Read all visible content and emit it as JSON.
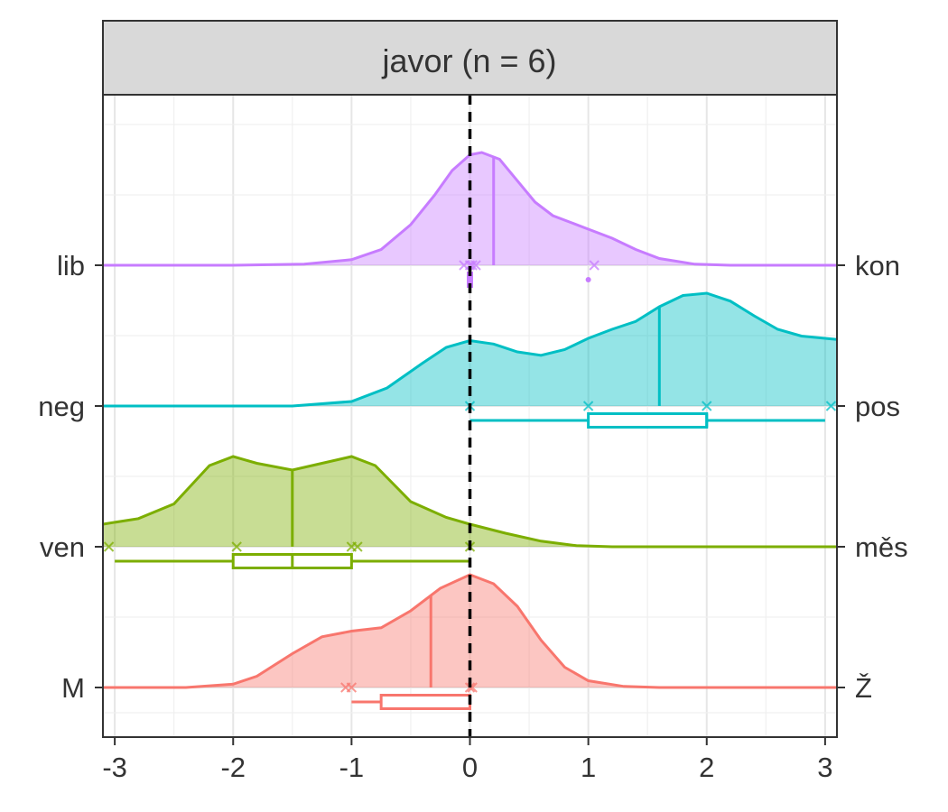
{
  "chart_data": {
    "type": "ridgeline",
    "title": "javor (n = 6)",
    "xlim": [
      -3.1,
      3.1
    ],
    "x_ticks": [
      -3,
      -2,
      -1,
      0,
      1,
      2,
      3
    ],
    "reference_line_x": 0,
    "grid": true,
    "left_labels": [
      "lib",
      "neg",
      "ven",
      "M"
    ],
    "right_labels": [
      "kon",
      "pos",
      "měs",
      "Ž"
    ],
    "rows": [
      {
        "left": "lib",
        "right": "kon",
        "color": "#C77CFF",
        "density": [
          [
            -3.1,
            0
          ],
          [
            -2.0,
            0
          ],
          [
            -1.4,
            0.01
          ],
          [
            -1.0,
            0.05
          ],
          [
            -0.75,
            0.14
          ],
          [
            -0.5,
            0.36
          ],
          [
            -0.3,
            0.62
          ],
          [
            -0.15,
            0.84
          ],
          [
            0,
            0.98
          ],
          [
            0.1,
            1.0
          ],
          [
            0.25,
            0.94
          ],
          [
            0.4,
            0.75
          ],
          [
            0.55,
            0.56
          ],
          [
            0.7,
            0.44
          ],
          [
            0.85,
            0.38
          ],
          [
            1.0,
            0.32
          ],
          [
            1.2,
            0.24
          ],
          [
            1.4,
            0.14
          ],
          [
            1.6,
            0.06
          ],
          [
            1.9,
            0.01
          ],
          [
            2.2,
            0
          ],
          [
            3.1,
            0
          ]
        ],
        "mean": 0.2,
        "points": [
          -0.05,
          0,
          0.02,
          0.05,
          1.05
        ],
        "box": {
          "min": 0,
          "q1": 0,
          "median": 0,
          "q3": 0,
          "max": 0
        },
        "outliers": [
          1.0
        ]
      },
      {
        "left": "neg",
        "right": "pos",
        "color": "#00BFC4",
        "density": [
          [
            -3.1,
            0
          ],
          [
            -1.5,
            0
          ],
          [
            -1.0,
            0.04
          ],
          [
            -0.7,
            0.16
          ],
          [
            -0.4,
            0.38
          ],
          [
            -0.2,
            0.52
          ],
          [
            0,
            0.58
          ],
          [
            0.2,
            0.55
          ],
          [
            0.4,
            0.48
          ],
          [
            0.6,
            0.45
          ],
          [
            0.8,
            0.5
          ],
          [
            1.0,
            0.6
          ],
          [
            1.2,
            0.68
          ],
          [
            1.4,
            0.75
          ],
          [
            1.6,
            0.88
          ],
          [
            1.8,
            0.98
          ],
          [
            2.0,
            1.0
          ],
          [
            2.2,
            0.93
          ],
          [
            2.4,
            0.8
          ],
          [
            2.6,
            0.68
          ],
          [
            2.8,
            0.62
          ],
          [
            3.0,
            0.6
          ],
          [
            3.1,
            0.59
          ]
        ],
        "mean": 1.6,
        "points": [
          0,
          1.0,
          2.0,
          3.05
        ],
        "box": {
          "min": 0,
          "q1": 1.0,
          "median": 2.0,
          "q3": 2.0,
          "max": 3.0
        },
        "outliers": []
      },
      {
        "left": "ven",
        "right": "měs",
        "color": "#7CAE00",
        "density": [
          [
            -3.1,
            0.2
          ],
          [
            -2.8,
            0.25
          ],
          [
            -2.5,
            0.38
          ],
          [
            -2.2,
            0.72
          ],
          [
            -2.0,
            0.8
          ],
          [
            -1.8,
            0.74
          ],
          [
            -1.5,
            0.68
          ],
          [
            -1.25,
            0.74
          ],
          [
            -1.0,
            0.8
          ],
          [
            -0.8,
            0.72
          ],
          [
            -0.5,
            0.4
          ],
          [
            -0.2,
            0.26
          ],
          [
            0,
            0.2
          ],
          [
            0.3,
            0.12
          ],
          [
            0.6,
            0.05
          ],
          [
            0.9,
            0.01
          ],
          [
            1.2,
            0
          ],
          [
            3.1,
            0
          ]
        ],
        "mean": -1.5,
        "points": [
          -3.05,
          -1.97,
          -1.0,
          -0.95,
          0
        ],
        "box": {
          "min": -3.0,
          "q1": -2.0,
          "median": -1.5,
          "q3": -1.0,
          "max": 0
        },
        "outliers": []
      },
      {
        "left": "M",
        "right": "Ž",
        "color": "#F8766D",
        "density": [
          [
            -3.1,
            0
          ],
          [
            -2.4,
            0
          ],
          [
            -2.0,
            0.03
          ],
          [
            -1.8,
            0.1
          ],
          [
            -1.5,
            0.3
          ],
          [
            -1.25,
            0.45
          ],
          [
            -1.0,
            0.5
          ],
          [
            -0.75,
            0.53
          ],
          [
            -0.5,
            0.68
          ],
          [
            -0.25,
            0.88
          ],
          [
            0,
            1.0
          ],
          [
            0.2,
            0.92
          ],
          [
            0.4,
            0.72
          ],
          [
            0.6,
            0.42
          ],
          [
            0.8,
            0.18
          ],
          [
            1.0,
            0.06
          ],
          [
            1.3,
            0.01
          ],
          [
            1.6,
            0
          ],
          [
            3.1,
            0
          ]
        ],
        "mean": -0.33,
        "points": [
          -1.05,
          -1.0,
          0,
          0.02
        ],
        "box": {
          "min": -1.0,
          "q1": -0.75,
          "median": 0,
          "q3": 0,
          "max": 0
        },
        "outliers": []
      }
    ]
  }
}
